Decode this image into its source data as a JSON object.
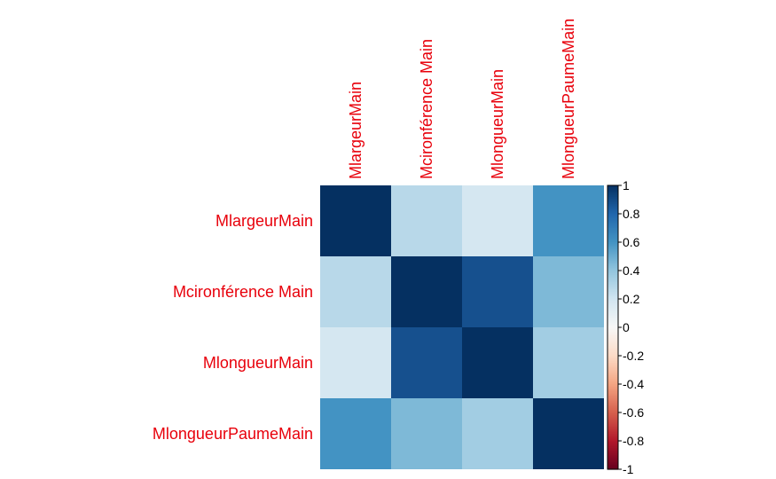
{
  "chart_data": {
    "type": "heatmap",
    "title": "",
    "variables": [
      "MlargeurMain",
      "Mcironférence Main",
      "MlongueurMain",
      "MlongueurPaumeMain"
    ],
    "matrix": [
      [
        1.0,
        0.28,
        0.18,
        0.6
      ],
      [
        0.28,
        1.0,
        0.88,
        0.45
      ],
      [
        0.18,
        0.88,
        1.0,
        0.35
      ],
      [
        0.6,
        0.45,
        0.35,
        1.0
      ]
    ],
    "colorbar": {
      "range": [
        -1,
        1
      ],
      "ticks": [
        "1",
        "0.8",
        "0.6",
        "0.4",
        "0.2",
        "0",
        "-0.2",
        "-0.4",
        "-0.6",
        "-0.8",
        "-1"
      ]
    },
    "colors": {
      "label": "#e8000b",
      "low": "#67001f",
      "mid": "#f7f7f7",
      "high": "#053061"
    },
    "grid": false
  }
}
